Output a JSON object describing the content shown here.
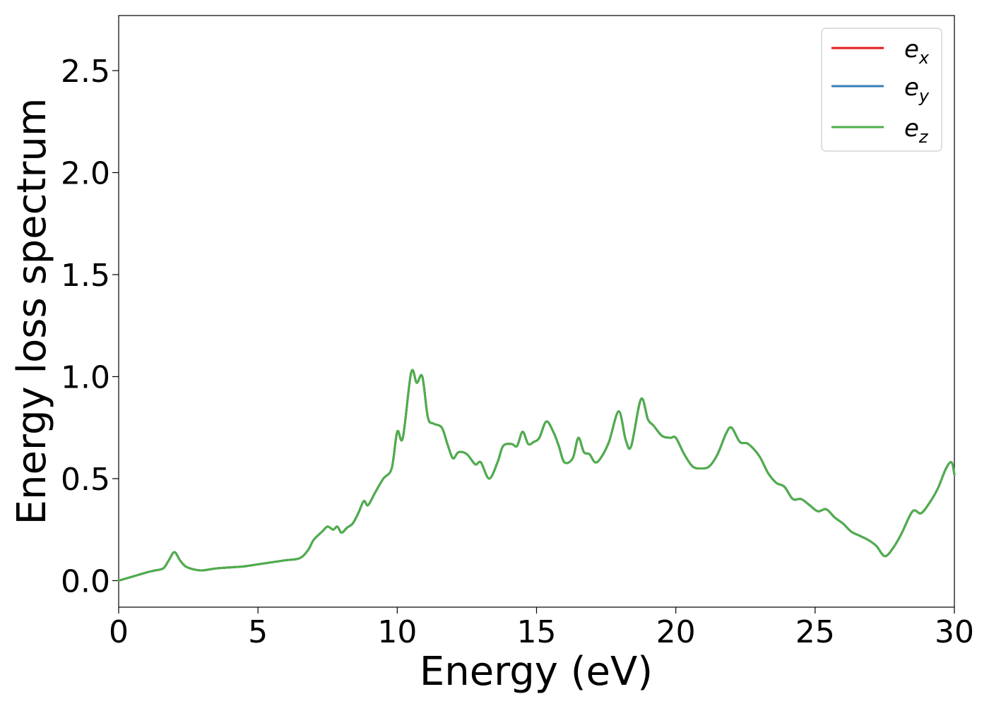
{
  "chart_data": {
    "type": "line",
    "title": "",
    "xlabel": "Energy (eV)",
    "ylabel": "Energy loss spectrum",
    "xlim": [
      0,
      30
    ],
    "ylim": [
      -0.13,
      2.77
    ],
    "xticks": [
      0,
      5,
      10,
      15,
      20,
      25,
      30
    ],
    "xtick_labels": [
      "0",
      "5",
      "10",
      "15",
      "20",
      "25",
      "30"
    ],
    "yticks": [
      0.0,
      0.5,
      1.0,
      1.5,
      2.0,
      2.5
    ],
    "ytick_labels": [
      "0.0",
      "0.5",
      "1.0",
      "1.5",
      "2.0",
      "2.5"
    ],
    "grid": false,
    "legend_position": "top-right",
    "x": [
      0,
      0.5,
      1.0,
      1.3,
      1.6,
      1.8,
      2.0,
      2.2,
      2.4,
      2.7,
      3.0,
      3.5,
      4.0,
      4.5,
      5.0,
      5.5,
      6.0,
      6.5,
      6.8,
      7.0,
      7.3,
      7.5,
      7.7,
      7.85,
      8.0,
      8.2,
      8.4,
      8.6,
      8.8,
      8.95,
      9.2,
      9.5,
      9.8,
      10.0,
      10.2,
      10.5,
      10.7,
      10.9,
      11.1,
      11.3,
      11.6,
      11.8,
      12.0,
      12.2,
      12.5,
      12.8,
      13.0,
      13.3,
      13.6,
      13.8,
      14.1,
      14.3,
      14.5,
      14.7,
      14.9,
      15.1,
      15.35,
      15.6,
      15.8,
      16.0,
      16.3,
      16.5,
      16.7,
      16.9,
      17.1,
      17.3,
      17.6,
      17.95,
      18.2,
      18.4,
      18.75,
      19.0,
      19.2,
      19.5,
      19.8,
      20.0,
      20.3,
      20.6,
      20.9,
      21.2,
      21.5,
      21.8,
      22.0,
      22.3,
      22.6,
      23.0,
      23.3,
      23.6,
      23.9,
      24.2,
      24.5,
      24.8,
      25.1,
      25.4,
      25.7,
      26.0,
      26.3,
      26.6,
      26.9,
      27.2,
      27.5,
      27.8,
      28.1,
      28.5,
      28.8,
      29.1,
      29.4,
      29.7,
      29.9,
      30.0
    ],
    "series": [
      {
        "name": "x",
        "color": "#e41a1c",
        "values": [
          0.0,
          0.02,
          0.04,
          0.05,
          0.06,
          0.1,
          0.14,
          0.1,
          0.07,
          0.055,
          0.05,
          0.06,
          0.065,
          0.07,
          0.08,
          0.09,
          0.1,
          0.11,
          0.15,
          0.2,
          0.24,
          0.265,
          0.25,
          0.265,
          0.235,
          0.26,
          0.28,
          0.33,
          0.39,
          0.37,
          0.43,
          0.5,
          0.55,
          0.73,
          0.7,
          1.02,
          0.97,
          1.0,
          0.8,
          0.77,
          0.75,
          0.67,
          0.6,
          0.63,
          0.62,
          0.57,
          0.58,
          0.5,
          0.58,
          0.66,
          0.67,
          0.66,
          0.73,
          0.67,
          0.68,
          0.7,
          0.78,
          0.73,
          0.66,
          0.58,
          0.6,
          0.7,
          0.63,
          0.62,
          0.58,
          0.6,
          0.68,
          0.83,
          0.69,
          0.66,
          0.89,
          0.79,
          0.76,
          0.71,
          0.7,
          0.7,
          0.62,
          0.56,
          0.55,
          0.56,
          0.62,
          0.72,
          0.75,
          0.68,
          0.67,
          0.61,
          0.53,
          0.48,
          0.46,
          0.4,
          0.4,
          0.37,
          0.34,
          0.35,
          0.31,
          0.28,
          0.24,
          0.22,
          0.2,
          0.17,
          0.12,
          0.16,
          0.23,
          0.34,
          0.33,
          0.38,
          0.45,
          0.55,
          0.58,
          0.52
        ]
      },
      {
        "name": "y",
        "color": "#377eb8",
        "values": [
          0.0,
          0.02,
          0.04,
          0.05,
          0.06,
          0.1,
          0.14,
          0.1,
          0.07,
          0.055,
          0.05,
          0.06,
          0.065,
          0.07,
          0.08,
          0.09,
          0.1,
          0.11,
          0.15,
          0.2,
          0.24,
          0.265,
          0.25,
          0.265,
          0.235,
          0.26,
          0.28,
          0.33,
          0.39,
          0.37,
          0.43,
          0.5,
          0.55,
          0.73,
          0.7,
          1.02,
          0.97,
          1.0,
          0.8,
          0.77,
          0.75,
          0.67,
          0.6,
          0.63,
          0.62,
          0.57,
          0.58,
          0.5,
          0.58,
          0.66,
          0.67,
          0.66,
          0.73,
          0.67,
          0.68,
          0.7,
          0.78,
          0.73,
          0.66,
          0.58,
          0.6,
          0.7,
          0.63,
          0.62,
          0.58,
          0.6,
          0.68,
          0.83,
          0.69,
          0.66,
          0.89,
          0.79,
          0.76,
          0.71,
          0.7,
          0.7,
          0.62,
          0.56,
          0.55,
          0.56,
          0.62,
          0.72,
          0.75,
          0.68,
          0.67,
          0.61,
          0.53,
          0.48,
          0.46,
          0.4,
          0.4,
          0.37,
          0.34,
          0.35,
          0.31,
          0.28,
          0.24,
          0.22,
          0.2,
          0.17,
          0.12,
          0.16,
          0.23,
          0.34,
          0.33,
          0.38,
          0.45,
          0.55,
          0.58,
          0.52
        ]
      },
      {
        "name": "z",
        "color": "#4daf4a",
        "values": [
          0.0,
          0.02,
          0.04,
          0.05,
          0.06,
          0.1,
          0.14,
          0.1,
          0.07,
          0.055,
          0.05,
          0.06,
          0.065,
          0.07,
          0.08,
          0.09,
          0.1,
          0.11,
          0.15,
          0.2,
          0.24,
          0.265,
          0.25,
          0.265,
          0.235,
          0.26,
          0.28,
          0.33,
          0.39,
          0.37,
          0.43,
          0.5,
          0.55,
          0.73,
          0.7,
          1.02,
          0.97,
          1.0,
          0.8,
          0.77,
          0.75,
          0.67,
          0.6,
          0.63,
          0.62,
          0.57,
          0.58,
          0.5,
          0.58,
          0.66,
          0.67,
          0.66,
          0.73,
          0.67,
          0.68,
          0.7,
          0.78,
          0.73,
          0.66,
          0.58,
          0.6,
          0.7,
          0.63,
          0.62,
          0.58,
          0.6,
          0.68,
          0.83,
          0.69,
          0.66,
          0.89,
          0.79,
          0.76,
          0.71,
          0.7,
          0.7,
          0.62,
          0.56,
          0.55,
          0.56,
          0.62,
          0.72,
          0.75,
          0.68,
          0.67,
          0.61,
          0.53,
          0.48,
          0.46,
          0.4,
          0.4,
          0.37,
          0.34,
          0.35,
          0.31,
          0.28,
          0.24,
          0.22,
          0.2,
          0.17,
          0.12,
          0.16,
          0.23,
          0.34,
          0.33,
          0.38,
          0.45,
          0.55,
          0.58,
          0.52
        ]
      }
    ]
  },
  "legend": {
    "base_letter": "e",
    "items": [
      {
        "sub": "x",
        "color": "#e41a1c"
      },
      {
        "sub": "y",
        "color": "#377eb8"
      },
      {
        "sub": "z",
        "color": "#4daf4a"
      }
    ]
  }
}
